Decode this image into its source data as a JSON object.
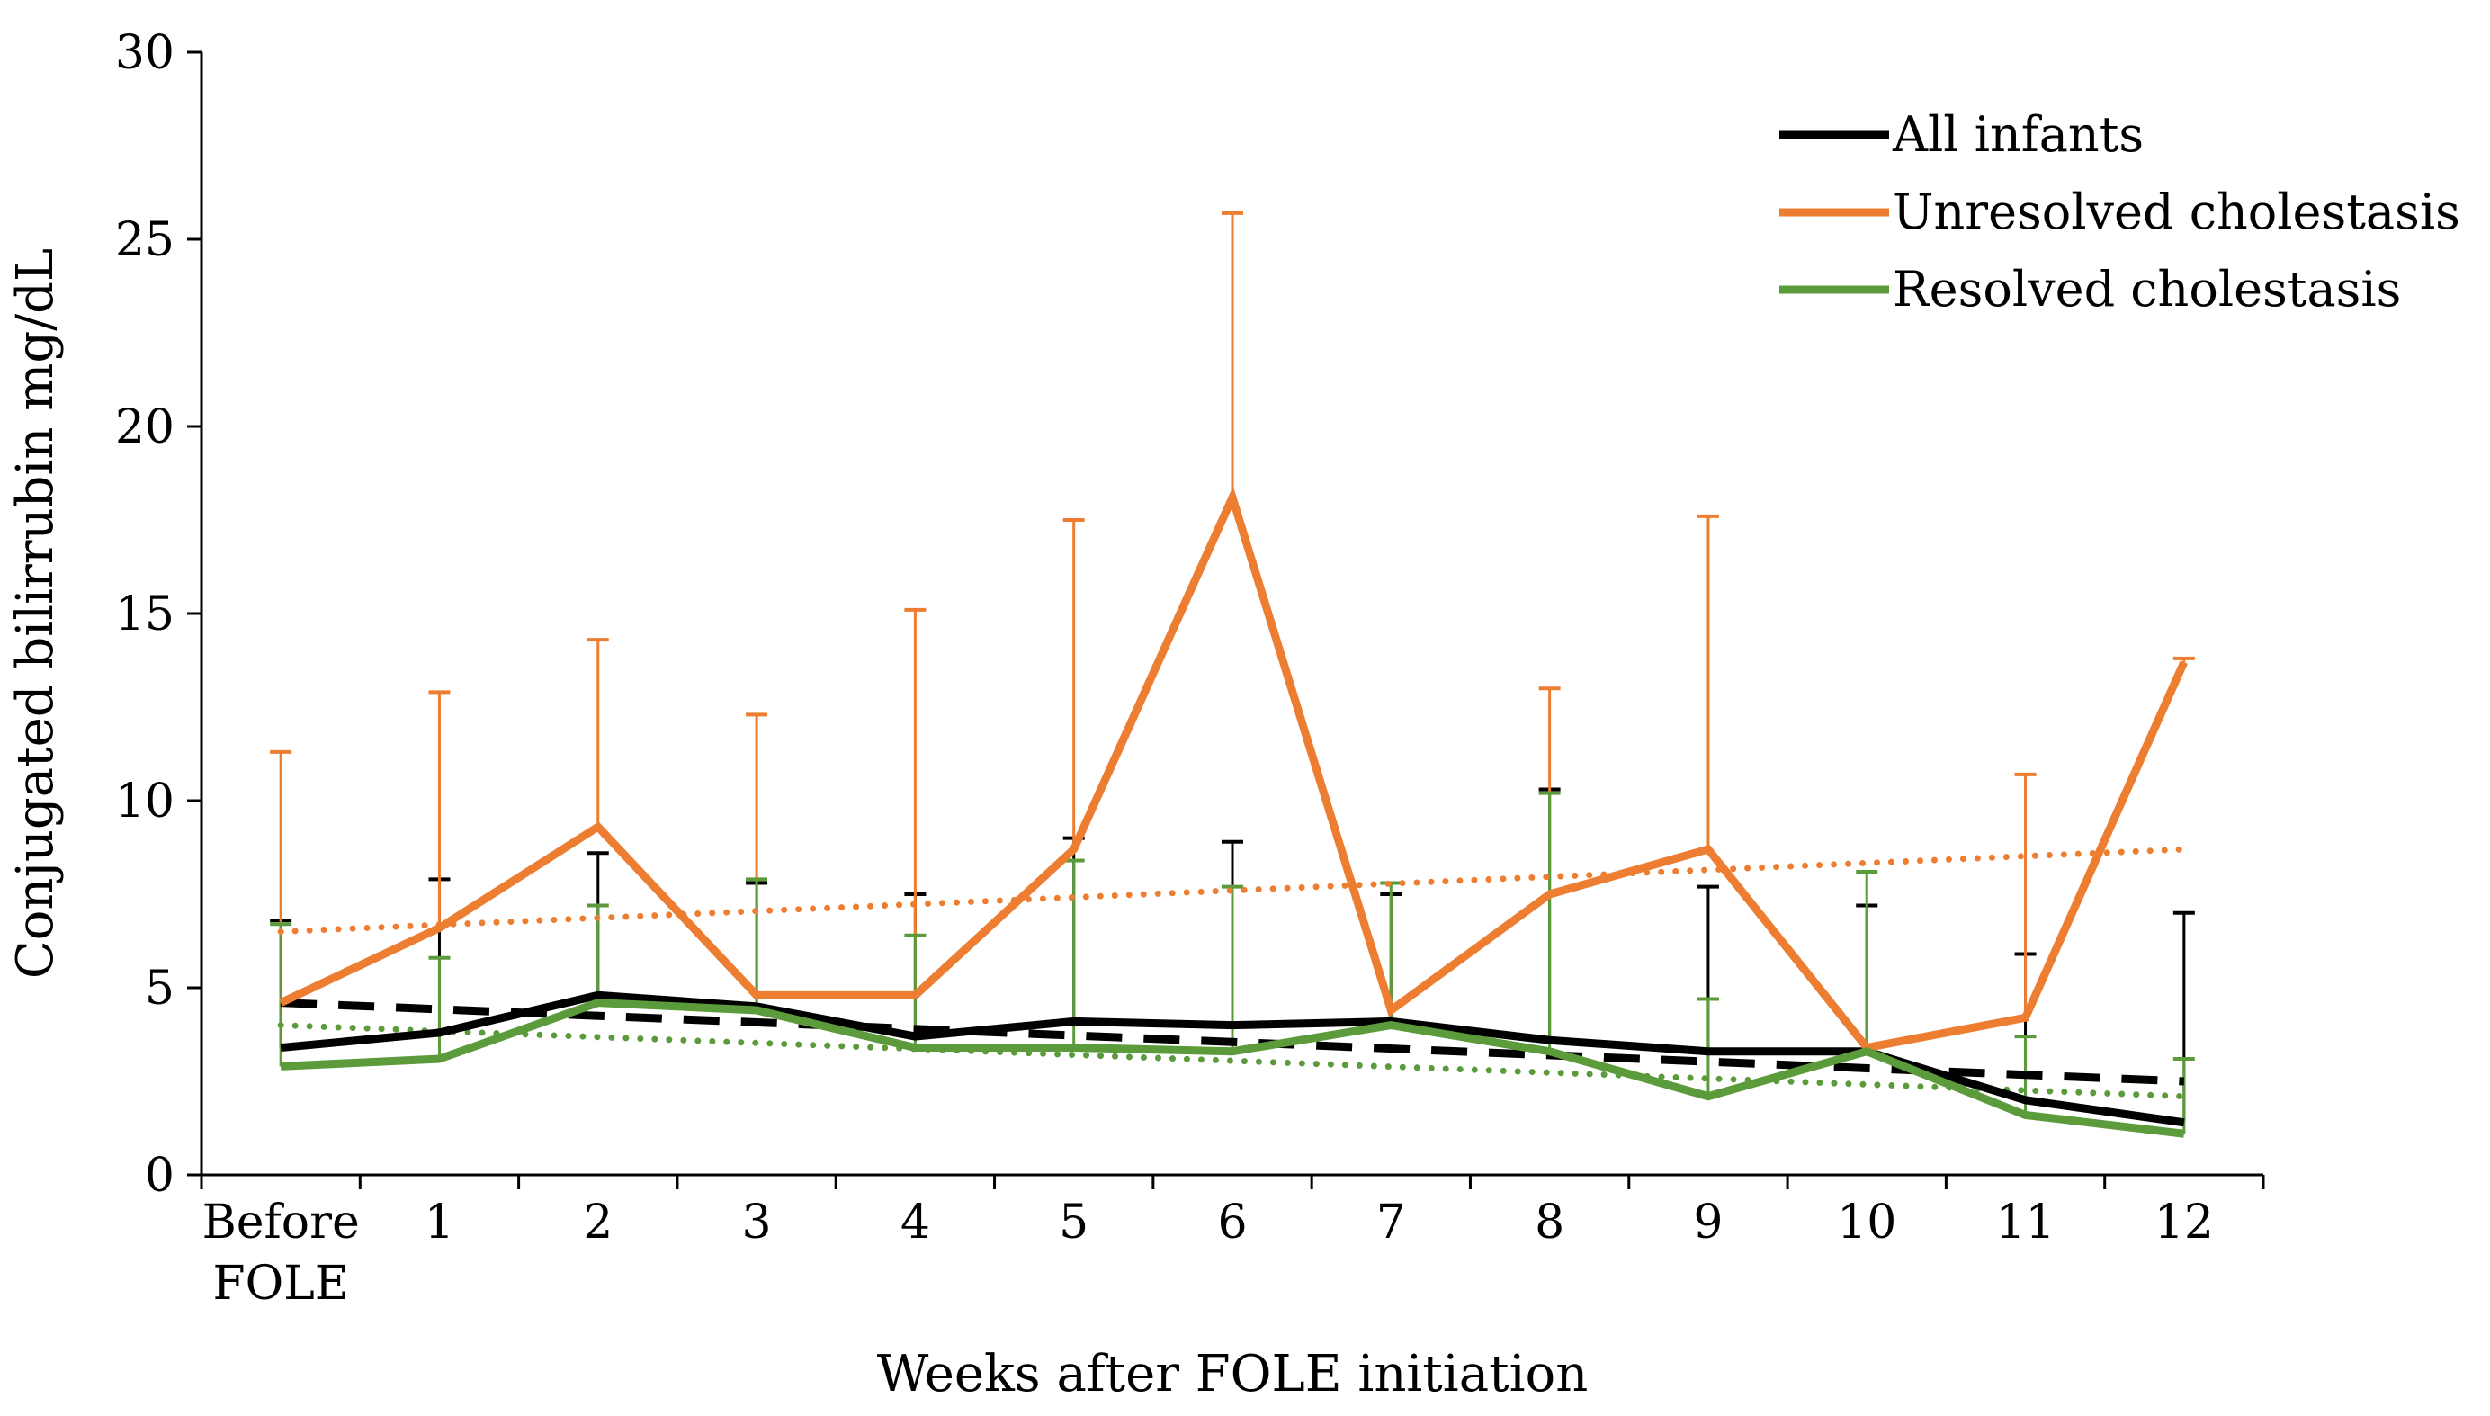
{
  "chart_data": {
    "type": "line",
    "title": "",
    "xlabel": "Weeks after FOLE initiation",
    "ylabel": "Conjugated bilirrubin mg/dL",
    "ylim": [
      0,
      30
    ],
    "yticks": [
      0,
      5,
      10,
      15,
      20,
      25,
      30
    ],
    "categories": [
      "Before FOLE",
      "1",
      "2",
      "3",
      "4",
      "5",
      "6",
      "7",
      "8",
      "9",
      "10",
      "11",
      "12"
    ],
    "category_lines": [
      [
        "Before",
        "FOLE"
      ],
      [
        "1"
      ],
      [
        "2"
      ],
      [
        "3"
      ],
      [
        "4"
      ],
      [
        "5"
      ],
      [
        "6"
      ],
      [
        "7"
      ],
      [
        "8"
      ],
      [
        "9"
      ],
      [
        "10"
      ],
      [
        "11"
      ],
      [
        "12"
      ]
    ],
    "legend_position": "top-right",
    "series": [
      {
        "name": "All infants",
        "color": "#000000",
        "values": [
          3.4,
          3.8,
          4.8,
          4.5,
          3.7,
          4.1,
          4.0,
          4.1,
          3.6,
          3.3,
          3.3,
          2.0,
          1.4
        ],
        "error_upper": [
          6.8,
          7.9,
          8.6,
          7.8,
          7.5,
          9.0,
          8.9,
          7.5,
          10.3,
          7.7,
          7.2,
          5.9,
          7.0
        ],
        "trend": {
          "style": "dashed",
          "start": 4.6,
          "end": 2.5
        }
      },
      {
        "name": "Unresolved cholestasis",
        "color": "#ED7D31",
        "values": [
          4.6,
          6.6,
          9.3,
          4.8,
          4.8,
          8.7,
          18.1,
          4.4,
          7.5,
          8.7,
          3.4,
          4.2,
          13.7
        ],
        "error_upper": [
          11.3,
          12.9,
          14.3,
          12.3,
          15.1,
          17.5,
          25.7,
          null,
          13.0,
          17.6,
          null,
          10.7,
          13.8
        ],
        "trend": {
          "style": "dotted",
          "start": 6.5,
          "end": 8.7
        }
      },
      {
        "name": "Resolved cholestasis",
        "color": "#5B9B3B",
        "values": [
          2.9,
          3.1,
          4.6,
          4.4,
          3.4,
          3.4,
          3.3,
          4.0,
          3.3,
          2.1,
          3.3,
          1.6,
          1.1
        ],
        "error_upper": [
          6.7,
          5.8,
          7.2,
          7.9,
          6.4,
          8.4,
          7.7,
          7.8,
          10.2,
          4.7,
          8.1,
          3.7,
          3.1
        ],
        "trend": {
          "style": "dotted",
          "start": 4.0,
          "end": 2.1
        }
      }
    ]
  }
}
